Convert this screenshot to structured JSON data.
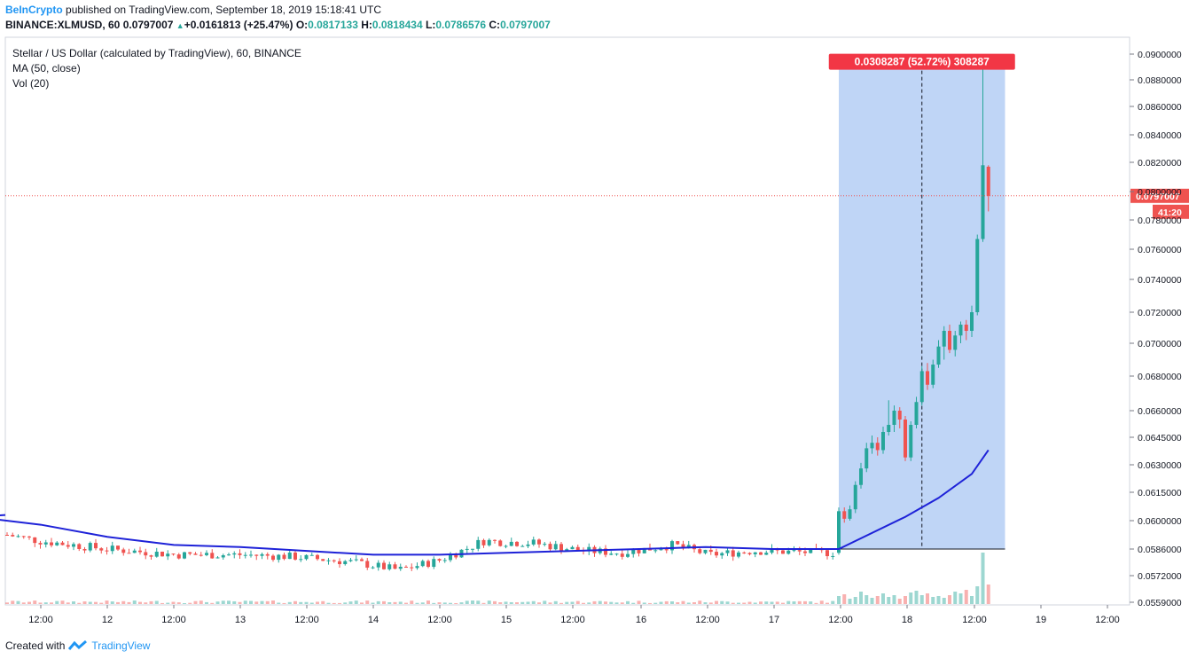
{
  "header": {
    "publisher": "BeInCrypto",
    "published_text": "published on TradingView.com, September 18, 2019 15:18:41 UTC",
    "symbol": "BINANCE:XLMUSD, 60",
    "last": "0.0797007",
    "change": "+0.0161813 (+25.47%)",
    "o_label": "O:",
    "o_value": "0.0817133",
    "h_label": "H:",
    "h_value": "0.0818434",
    "l_label": "L:",
    "l_value": "0.0786576",
    "c_label": "C:",
    "c_value": "0.0797007"
  },
  "legend": {
    "title": "Stellar / US Dollar (calculated by TradingView), 60, BINANCE",
    "ma": "MA (50, close)",
    "vol": "Vol (20)"
  },
  "footer": {
    "created_with": "Created with",
    "brand": "TradingView"
  },
  "colors": {
    "up": "#26a69a",
    "down": "#ef5350",
    "ma": "#1e22d8",
    "range_fill": "#bcd3f5",
    "last_price": "#ef5350",
    "measure_label": "#f23645"
  },
  "chart_data": {
    "type": "candlestick",
    "y_axis_ticks": [
      "0.0900000",
      "0.0880000",
      "0.0860000",
      "0.0840000",
      "0.0820000",
      "0.0800000",
      "0.0780000",
      "0.0760000",
      "0.0740000",
      "0.0720000",
      "0.0700000",
      "0.0680000",
      "0.0660000",
      "0.0645000",
      "0.0630000",
      "0.0615000",
      "0.0600000",
      "0.0586000",
      "0.0572000",
      "0.0559000"
    ],
    "x_axis_ticks": [
      "12:00",
      "12",
      "12:00",
      "13",
      "12:00",
      "14",
      "12:00",
      "15",
      "12:00",
      "16",
      "12:00",
      "17",
      "12:00",
      "18",
      "12:00",
      "19",
      "12:00"
    ],
    "last_price_label": "0.0797007",
    "countdown_label": "41:20",
    "measure": {
      "label": "0.0308287 (52.72%) 308287",
      "from_price": 0.0586,
      "to_price": 0.0892
    },
    "ma_series": [
      [
        "11T00",
        0.0602
      ],
      [
        "11T12",
        0.0598
      ],
      [
        "12T00",
        0.0592
      ],
      [
        "12T12",
        0.0588
      ],
      [
        "13T00",
        0.0587
      ],
      [
        "13T12",
        0.0585
      ],
      [
        "14T00",
        0.0583
      ],
      [
        "14T12",
        0.0583
      ],
      [
        "15T00",
        0.0584
      ],
      [
        "15T12",
        0.0585
      ],
      [
        "16T00",
        0.0586
      ],
      [
        "16T12",
        0.0587
      ],
      [
        "17T00",
        0.0586
      ],
      [
        "17T12",
        0.0586
      ],
      [
        "18T00",
        0.0602
      ],
      [
        "18T06",
        0.0612
      ],
      [
        "18T12",
        0.0625
      ],
      [
        "18T15",
        0.0638
      ]
    ]
  }
}
